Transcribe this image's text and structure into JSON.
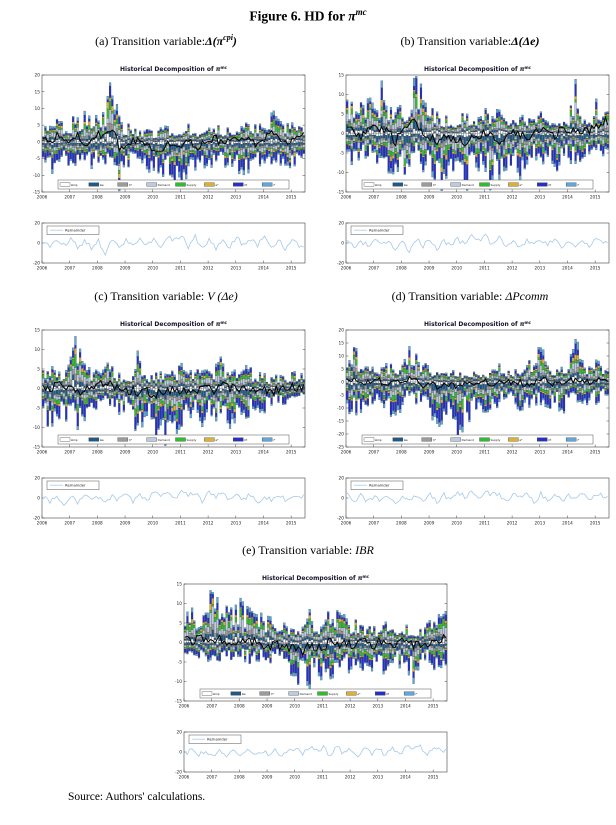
{
  "figure": {
    "title_prefix": "Figure 6. HD for ",
    "title_symbol": "π",
    "title_sup": "mc"
  },
  "source_note": "Source: Authors' calculations.",
  "chart_common": {
    "title_prefix": "Historical Decomposition of ",
    "title_symbol": "π",
    "title_sup": "mc",
    "years": [
      "2006",
      "2007",
      "2008",
      "2009",
      "2010",
      "2011",
      "2012",
      "2013",
      "2014",
      "2015"
    ],
    "legend": [
      {
        "label": "Δmp",
        "color": "#FFFFFF"
      },
      {
        "label": "Δe",
        "color": "#1B5A8A"
      },
      {
        "label": "π*",
        "color": "#9B9B9B"
      },
      {
        "label": "Demand",
        "color": "#BCCBDF"
      },
      {
        "label": "Supply",
        "color": "#2DBE2D"
      },
      {
        "label": "e*",
        "color": "#DFAF35"
      },
      {
        "label": "πf",
        "color": "#2231C8"
      },
      {
        "label": "i*",
        "color": "#5FA8DC"
      }
    ],
    "remainder_label": "Remainder",
    "remainder_ylim": [
      -20,
      20
    ],
    "remainder_yticks": [
      20,
      0,
      -20
    ],
    "net_line_color": "#000000",
    "remainder_line_color": "#A6C9E8",
    "axis_color": "#444444",
    "text_color": "#222222"
  },
  "chart_data": [
    {
      "id": "a",
      "type": "bar",
      "caption": {
        "prefix": "(a) Transition variable:",
        "math": "Δ(π",
        "sup": "cpi",
        "tail": ")"
      },
      "ylim": [
        -15,
        20
      ],
      "yticks": [
        20,
        15,
        10,
        5,
        0,
        -5,
        -10,
        -15
      ],
      "x_start_year": 2006,
      "x_quarters": 38,
      "pos": [
        3,
        4,
        5,
        4,
        5,
        6,
        7,
        5,
        6,
        8,
        16,
        6,
        4,
        5,
        3,
        3,
        2,
        3,
        4,
        3,
        3,
        4,
        3,
        2,
        3,
        4,
        3,
        3,
        3,
        4,
        5,
        4,
        4,
        8,
        5,
        4,
        5,
        4
      ],
      "neg": [
        -4,
        -6,
        -8,
        -5,
        -7,
        -5,
        -4,
        -6,
        -5,
        -7,
        -9,
        -12,
        -6,
        -5,
        -4,
        -6,
        -8,
        -10,
        -9,
        -11,
        -10,
        -9,
        -11,
        -8,
        -6,
        -7,
        -5,
        -6,
        -7,
        -9,
        -10,
        -6,
        -5,
        -6,
        -7,
        -8,
        -7,
        -4
      ],
      "net_line": [
        1,
        -1,
        2,
        0,
        1,
        2,
        -1,
        1,
        2,
        3,
        4,
        -2,
        -1,
        1,
        0,
        -1,
        -2,
        -3,
        -1,
        -2,
        -1,
        0,
        -2,
        -1,
        0,
        1,
        -1,
        0,
        1,
        2,
        0,
        -1,
        1,
        2,
        1,
        0,
        1,
        2
      ],
      "remainder": [
        2,
        -3,
        4,
        -2,
        3,
        -4,
        2,
        -5,
        3,
        -14,
        5,
        -3,
        2,
        -4,
        3,
        -2,
        5,
        -3,
        7,
        2,
        8,
        -4,
        6,
        -5,
        3,
        -6,
        2,
        -4,
        5,
        -3,
        4,
        -2,
        6,
        -4,
        3,
        -5,
        4,
        -2
      ]
    },
    {
      "id": "b",
      "type": "bar",
      "caption": {
        "prefix": "(b) Transition variable:",
        "math": "Δ(Δe",
        "sup": "",
        "tail": ")"
      },
      "ylim": [
        -15,
        15
      ],
      "yticks": [
        15,
        10,
        5,
        0,
        -5,
        -10,
        -15
      ],
      "x_start_year": 2006,
      "x_quarters": 38,
      "pos": [
        8,
        5,
        6,
        9,
        6,
        10,
        7,
        5,
        7,
        5,
        15,
        6,
        5,
        4,
        3,
        4,
        3,
        4,
        3,
        4,
        5,
        4,
        6,
        3,
        4,
        5,
        3,
        4,
        4,
        3,
        5,
        3,
        3,
        11,
        4,
        3,
        7,
        6
      ],
      "neg": [
        -5,
        -7,
        -4,
        -6,
        -5,
        -8,
        -10,
        -7,
        -9,
        -6,
        -5,
        -8,
        -7,
        -10,
        -12,
        -9,
        -11,
        -12,
        -10,
        -12,
        -9,
        -11,
        -12,
        -8,
        -7,
        -10,
        -8,
        -6,
        -7,
        -6,
        -8,
        -5,
        -6,
        -7,
        -5,
        -4,
        -3,
        -5
      ],
      "net_line": [
        2,
        1,
        -1,
        2,
        1,
        2,
        0,
        -2,
        1,
        2,
        3,
        0,
        -1,
        -2,
        -1,
        -2,
        -1,
        -2,
        -1,
        -1,
        0,
        -1,
        -2,
        0,
        1,
        0,
        -1,
        0,
        1,
        0,
        -1,
        1,
        0,
        1,
        0,
        1,
        2,
        3
      ],
      "remainder": [
        3,
        -4,
        2,
        -3,
        5,
        -2,
        4,
        -6,
        2,
        -8,
        4,
        -3,
        3,
        -5,
        2,
        -3,
        4,
        -2,
        6,
        3,
        7,
        -3,
        5,
        -4,
        4,
        -5,
        3,
        -3,
        4,
        -2,
        5,
        -3,
        3,
        -4,
        2,
        -3,
        5,
        2
      ]
    },
    {
      "id": "c",
      "type": "bar",
      "caption": {
        "prefix": "(c) Transition variable: ",
        "math": "V (Δe",
        "sup": "",
        "tail": ")"
      },
      "ylim": [
        -15,
        15
      ],
      "yticks": [
        15,
        10,
        5,
        0,
        -5,
        -10,
        -15
      ],
      "x_start_year": 2006,
      "x_quarters": 38,
      "pos": [
        4,
        5,
        3,
        4,
        6,
        11,
        5,
        4,
        5,
        6,
        4,
        3,
        3,
        4,
        8,
        3,
        3,
        4,
        3,
        4,
        5,
        3,
        4,
        5,
        4,
        5,
        6,
        4,
        3,
        6,
        4,
        3,
        3,
        2,
        3,
        2,
        3,
        4
      ],
      "neg": [
        -6,
        -8,
        -5,
        -7,
        -6,
        -9,
        -7,
        -5,
        -4,
        -3,
        -4,
        -5,
        -4,
        -6,
        -12,
        -8,
        -9,
        -13,
        -10,
        -9,
        -8,
        -7,
        -6,
        -8,
        -6,
        -7,
        -5,
        -9,
        -7,
        -6,
        -5,
        -4,
        -5,
        -4,
        -3,
        -4,
        -3,
        -2
      ],
      "net_line": [
        0,
        -1,
        1,
        0,
        1,
        -1,
        0,
        1,
        1,
        2,
        1,
        0,
        -1,
        0,
        -1,
        -1,
        -2,
        -1,
        -1,
        0,
        -1,
        0,
        -1,
        0,
        0,
        -1,
        1,
        0,
        0,
        1,
        0,
        0,
        0,
        -1,
        0,
        0,
        1,
        0
      ],
      "remainder": [
        2,
        -5,
        3,
        -6,
        2,
        -4,
        3,
        -2,
        2,
        -3,
        1,
        -2,
        3,
        -4,
        2,
        -3,
        5,
        3,
        6,
        -2,
        7,
        4,
        5,
        -3,
        6,
        2,
        4,
        -3,
        3,
        -2,
        4,
        -4,
        2,
        -3,
        3,
        -2,
        2,
        1
      ]
    },
    {
      "id": "d",
      "type": "bar",
      "caption": {
        "prefix": "(d) Transition variable: ",
        "math": "ΔPcomm",
        "sup": "",
        "tail": ""
      },
      "ylim": [
        -25,
        20
      ],
      "yticks": [
        20,
        15,
        10,
        5,
        0,
        -5,
        -10,
        -15,
        -20,
        -25
      ],
      "x_start_year": 2006,
      "x_quarters": 38,
      "pos": [
        4,
        11,
        6,
        5,
        4,
        5,
        6,
        3,
        5,
        10,
        9,
        6,
        4,
        3,
        3,
        4,
        3,
        2,
        3,
        4,
        3,
        4,
        5,
        3,
        4,
        5,
        6,
        6,
        12,
        5,
        5,
        4,
        5,
        17,
        6,
        5,
        6,
        5
      ],
      "neg": [
        -14,
        -8,
        -11,
        -7,
        -6,
        -8,
        -13,
        -9,
        -8,
        -6,
        -7,
        -5,
        -9,
        -15,
        -10,
        -8,
        -21,
        -12,
        -10,
        -8,
        -9,
        -7,
        -8,
        -6,
        -7,
        -9,
        -10,
        -7,
        -10,
        -8,
        -7,
        -9,
        -10,
        -8,
        -7,
        -6,
        -7,
        -5
      ],
      "net_line": [
        0,
        1,
        -1,
        0,
        1,
        0,
        -1,
        0,
        1,
        1,
        0,
        -1,
        -1,
        -2,
        -1,
        -1,
        -2,
        -1,
        0,
        -1,
        0,
        -1,
        0,
        0,
        -1,
        0,
        -1,
        0,
        1,
        0,
        -1,
        0,
        0,
        1,
        0,
        0,
        1,
        0
      ],
      "remainder": [
        3,
        -3,
        4,
        -4,
        2,
        -3,
        3,
        -5,
        2,
        -4,
        3,
        -2,
        4,
        -5,
        3,
        -3,
        6,
        2,
        5,
        -2,
        6,
        3,
        4,
        -3,
        5,
        2,
        3,
        -4,
        4,
        -2,
        5,
        -3,
        3,
        -2,
        4,
        -3,
        3,
        2
      ]
    },
    {
      "id": "e",
      "type": "bar",
      "caption": {
        "prefix": "(e) Transition variable: ",
        "math": "IBR",
        "sup": "",
        "tail": ""
      },
      "ylim": [
        -15,
        15
      ],
      "yticks": [
        15,
        10,
        5,
        0,
        -5,
        -10,
        -15
      ],
      "x_start_year": 2006,
      "x_quarters": 38,
      "pos": [
        6,
        8,
        7,
        9,
        10,
        8,
        7,
        8,
        9,
        8,
        7,
        6,
        5,
        4,
        4,
        3,
        4,
        3,
        8,
        5,
        4,
        8,
        7,
        5,
        5,
        4,
        3,
        4,
        3,
        4,
        3,
        3,
        4,
        3,
        3,
        4,
        5,
        6
      ],
      "neg": [
        -3,
        -2,
        -3,
        -4,
        -3,
        -4,
        -3,
        -4,
        -3,
        -4,
        -5,
        -3,
        -4,
        -3,
        -5,
        -6,
        -8,
        -10,
        -9,
        -8,
        -9,
        -7,
        -6,
        -5,
        -7,
        -6,
        -5,
        -6,
        -5,
        -6,
        -4,
        -5,
        -6,
        -8,
        -5,
        -4,
        -6,
        -5
      ],
      "net_line": [
        1,
        0,
        1,
        0,
        1,
        1,
        0,
        1,
        0,
        1,
        0,
        0,
        -1,
        0,
        -1,
        -1,
        -2,
        -2,
        -1,
        -1,
        -1,
        0,
        -1,
        0,
        -1,
        0,
        0,
        -1,
        0,
        0,
        -1,
        0,
        0,
        -1,
        0,
        0,
        1,
        1
      ],
      "remainder": [
        -2,
        3,
        -3,
        2,
        -4,
        2,
        -3,
        3,
        -2,
        2,
        -3,
        1,
        -2,
        3,
        -4,
        2,
        3,
        -2,
        5,
        2,
        4,
        -3,
        5,
        -2,
        3,
        -4,
        4,
        -2,
        3,
        -3,
        5,
        -2,
        6,
        3,
        5,
        -3,
        6,
        2
      ]
    }
  ]
}
